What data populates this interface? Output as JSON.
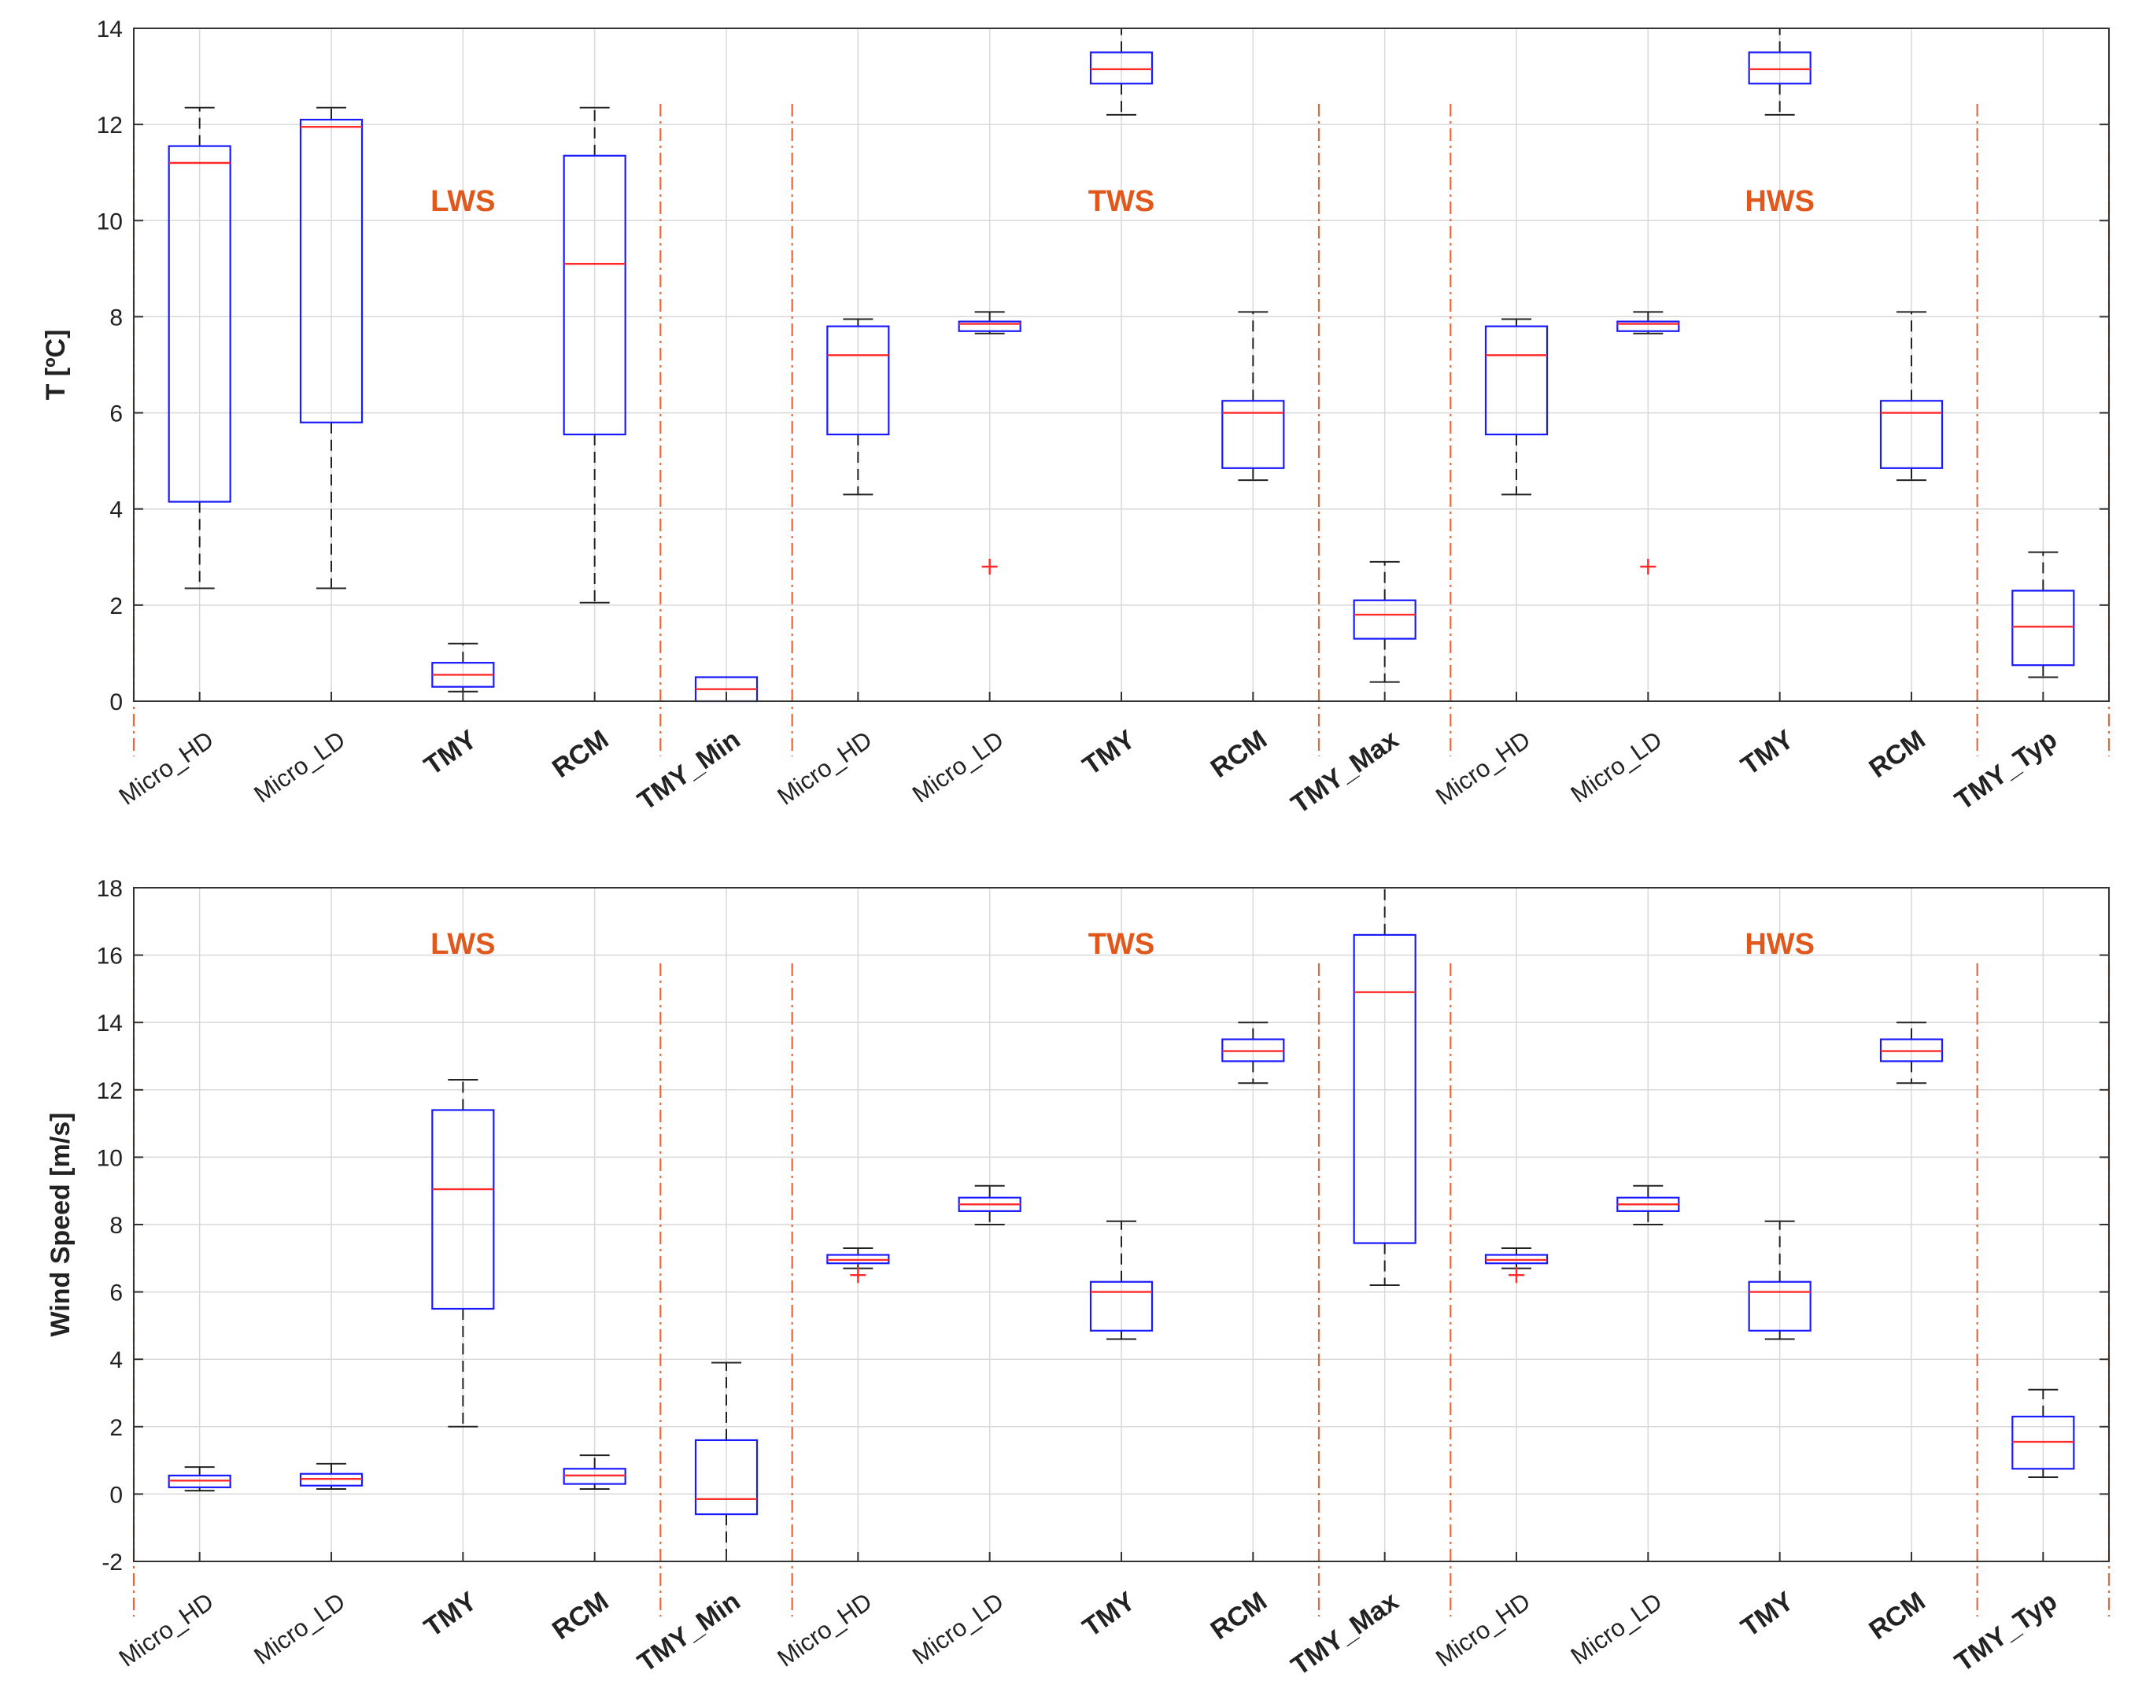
{
  "chart_data": [
    {
      "type": "box",
      "ylabel": "T [ºC]",
      "ylim": [
        0,
        14
      ],
      "yticks": [
        0,
        2,
        4,
        6,
        8,
        10,
        12,
        14
      ],
      "grid": true,
      "categories": [
        "Micro_HD",
        "Micro_LD",
        "TMY",
        "RCM",
        "TMY_Min",
        "Micro_HD",
        "Micro_LD",
        "TMY",
        "RCM",
        "TMY_Max",
        "Micro_HD",
        "Micro_LD",
        "TMY",
        "RCM",
        "TMY_Typ"
      ],
      "bold_categories": [
        2,
        3,
        4,
        7,
        8,
        9,
        12,
        13,
        14
      ],
      "groups": [
        {
          "label": "LWS",
          "center": 3.0
        },
        {
          "label": "TWS",
          "center": 8.0
        },
        {
          "label": "HWS",
          "center": 13.0
        }
      ],
      "separators": [
        0.5,
        4.5,
        5.5,
        9.5,
        10.5,
        14.5,
        15.5
      ],
      "boxes": [
        {
          "min": 2.35,
          "q1": 4.15,
          "median": 11.2,
          "q3": 11.55,
          "max": 12.35
        },
        {
          "min": 2.35,
          "q1": 5.8,
          "median": 11.95,
          "q3": 12.1,
          "max": 12.35
        },
        {
          "min": 0.2,
          "q1": 0.3,
          "median": 0.55,
          "q3": 0.8,
          "max": 1.2
        },
        {
          "min": 2.05,
          "q1": 5.55,
          "median": 9.1,
          "q3": 11.35,
          "max": 12.35
        },
        {
          "min": 0.0,
          "q1": 0.0,
          "median": 0.25,
          "q3": 0.5,
          "max": 0.5
        },
        {
          "min": 4.3,
          "q1": 5.55,
          "median": 7.2,
          "q3": 7.8,
          "max": 7.95
        },
        {
          "min": 7.65,
          "q1": 7.7,
          "median": 7.85,
          "q3": 7.9,
          "max": 8.1,
          "outliers": [
            2.8
          ]
        },
        {
          "min": 12.2,
          "q1": 12.85,
          "median": 13.15,
          "q3": 13.5,
          "max": 14.0
        },
        {
          "min": 4.6,
          "q1": 4.85,
          "median": 6.0,
          "q3": 6.25,
          "max": 8.1
        },
        {
          "min": 0.4,
          "q1": 1.3,
          "median": 1.8,
          "q3": 2.1,
          "max": 2.9
        },
        {
          "min": 4.3,
          "q1": 5.55,
          "median": 7.2,
          "q3": 7.8,
          "max": 7.95
        },
        {
          "min": 7.65,
          "q1": 7.7,
          "median": 7.85,
          "q3": 7.9,
          "max": 8.1,
          "outliers": [
            2.8
          ]
        },
        {
          "min": 12.2,
          "q1": 12.85,
          "median": 13.15,
          "q3": 13.5,
          "max": 14.0
        },
        {
          "min": 4.6,
          "q1": 4.85,
          "median": 6.0,
          "q3": 6.25,
          "max": 8.1
        },
        {
          "min": 0.5,
          "q1": 0.75,
          "median": 1.55,
          "q3": 2.3,
          "max": 3.1
        }
      ]
    },
    {
      "type": "box",
      "ylabel": "Wind Speed [m/s]",
      "ylim": [
        -2,
        18
      ],
      "yticks": [
        -2,
        0,
        2,
        4,
        6,
        8,
        10,
        12,
        14,
        16,
        18
      ],
      "grid": true,
      "categories": [
        "Micro_HD",
        "Micro_LD",
        "TMY",
        "RCM",
        "TMY_Min",
        "Micro_HD",
        "Micro_LD",
        "TMY",
        "RCM",
        "TMY_Max",
        "Micro_HD",
        "Micro_LD",
        "TMY",
        "RCM",
        "TMY_Typ"
      ],
      "bold_categories": [
        2,
        3,
        4,
        7,
        8,
        9,
        12,
        13,
        14
      ],
      "groups": [
        {
          "label": "LWS",
          "center": 3.0
        },
        {
          "label": "TWS",
          "center": 8.0
        },
        {
          "label": "HWS",
          "center": 13.0
        }
      ],
      "separators": [
        0.5,
        4.5,
        5.5,
        9.5,
        10.5,
        14.5,
        15.5
      ],
      "boxes": [
        {
          "min": 0.1,
          "q1": 0.2,
          "median": 0.4,
          "q3": 0.55,
          "max": 0.8
        },
        {
          "min": 0.15,
          "q1": 0.25,
          "median": 0.45,
          "q3": 0.6,
          "max": 0.9
        },
        {
          "min": 2.0,
          "q1": 5.5,
          "median": 9.05,
          "q3": 11.4,
          "max": 12.3
        },
        {
          "min": 0.15,
          "q1": 0.3,
          "median": 0.55,
          "q3": 0.75,
          "max": 1.15
        },
        {
          "min": -2.0,
          "q1": -0.6,
          "median": -0.15,
          "q3": 1.6,
          "max": 3.9
        },
        {
          "min": 6.7,
          "q1": 6.85,
          "median": 6.95,
          "q3": 7.1,
          "max": 7.3,
          "outliers": [
            6.5
          ]
        },
        {
          "min": 8.0,
          "q1": 8.4,
          "median": 8.6,
          "q3": 8.8,
          "max": 9.15
        },
        {
          "min": 4.6,
          "q1": 4.85,
          "median": 6.0,
          "q3": 6.3,
          "max": 8.1
        },
        {
          "min": 12.2,
          "q1": 12.85,
          "median": 13.15,
          "q3": 13.5,
          "max": 14.0
        },
        {
          "min": 6.2,
          "q1": 7.45,
          "median": 14.9,
          "q3": 16.6,
          "max": 18.0
        },
        {
          "min": 6.7,
          "q1": 6.85,
          "median": 6.95,
          "q3": 7.1,
          "max": 7.3,
          "outliers": [
            6.5
          ]
        },
        {
          "min": 8.0,
          "q1": 8.4,
          "median": 8.6,
          "q3": 8.8,
          "max": 9.15
        },
        {
          "min": 4.6,
          "q1": 4.85,
          "median": 6.0,
          "q3": 6.3,
          "max": 8.1
        },
        {
          "min": 12.2,
          "q1": 12.85,
          "median": 13.15,
          "q3": 13.5,
          "max": 14.0
        },
        {
          "min": 0.5,
          "q1": 0.75,
          "median": 1.55,
          "q3": 2.3,
          "max": 3.1
        }
      ]
    }
  ],
  "colors": {
    "box": "#1a1aff",
    "median": "#ff2a2a",
    "whisker": "#222222",
    "separator": "#e8673a",
    "group_label": "#e0581c",
    "grid": "#d9d9d9",
    "axis": "#333333"
  }
}
